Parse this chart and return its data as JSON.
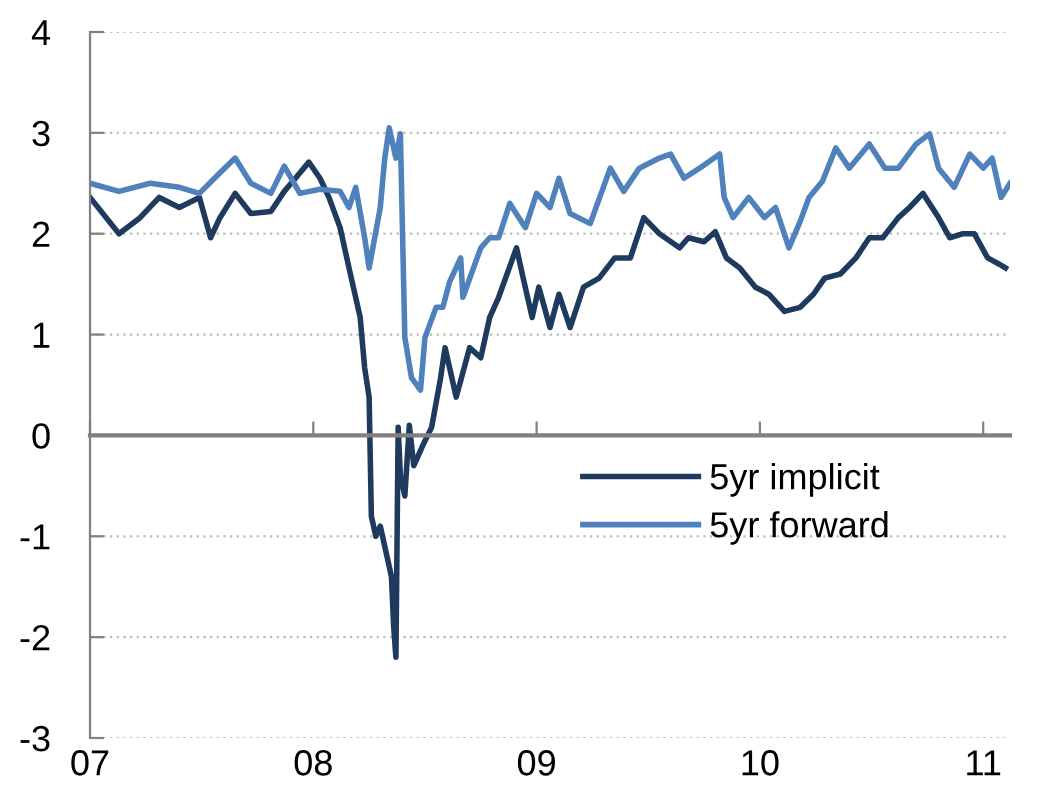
{
  "chart_data": {
    "type": "line",
    "xlim": [
      2007,
      2011.12
    ],
    "xticks": [
      {
        "value": 2007,
        "label": "07"
      },
      {
        "value": 2008,
        "label": "08"
      },
      {
        "value": 2009,
        "label": "09"
      },
      {
        "value": 2010,
        "label": "10"
      },
      {
        "value": 2011,
        "label": "11"
      }
    ],
    "ylim": [
      -3,
      4
    ],
    "yticks": [
      -3,
      -2,
      -1,
      0,
      1,
      2,
      3,
      4
    ],
    "grid": "y",
    "legend": "center right",
    "line_style": "solid",
    "marker": "none",
    "series": [
      {
        "name": "5yr implicit",
        "color": "#1f3a5f",
        "x": [
          2007.0,
          2007.13,
          2007.22,
          2007.31,
          2007.4,
          2007.49,
          2007.54,
          2007.58,
          2007.65,
          2007.72,
          2007.81,
          2007.87,
          2007.92,
          2007.98,
          2008.03,
          2008.07,
          2008.12,
          2008.16,
          2008.21,
          2008.23,
          2008.25,
          2008.26,
          2008.28,
          2008.3,
          2008.32,
          2008.35,
          2008.36,
          2008.37,
          2008.38,
          2008.39,
          2008.41,
          2008.43,
          2008.45,
          2008.49,
          2008.53,
          2008.57,
          2008.59,
          2008.64,
          2008.7,
          2008.75,
          2008.79,
          2008.83,
          2008.91,
          2008.94,
          2008.98,
          2009.01,
          2009.06,
          2009.1,
          2009.15,
          2009.21,
          2009.28,
          2009.35,
          2009.42,
          2009.48,
          2009.55,
          2009.64,
          2009.68,
          2009.75,
          2009.8,
          2009.85,
          2009.91,
          2009.98,
          2010.04,
          2010.11,
          2010.18,
          2010.24,
          2010.29,
          2010.36,
          2010.43,
          2010.49,
          2010.55,
          2010.62,
          2010.67,
          2010.73,
          2010.8,
          2010.85,
          2010.91,
          2010.96,
          2011.02,
          2011.07,
          2011.1
        ],
        "values": [
          2.36,
          2.0,
          2.15,
          2.36,
          2.26,
          2.36,
          1.96,
          2.15,
          2.4,
          2.2,
          2.22,
          2.42,
          2.55,
          2.71,
          2.55,
          2.36,
          2.06,
          1.66,
          1.17,
          0.67,
          0.38,
          -0.8,
          -1.0,
          -0.9,
          -1.1,
          -1.4,
          -1.9,
          -2.2,
          0.08,
          -0.4,
          -0.6,
          0.1,
          -0.3,
          -0.1,
          0.08,
          0.57,
          0.87,
          0.38,
          0.87,
          0.77,
          1.17,
          1.37,
          1.86,
          1.56,
          1.17,
          1.47,
          1.07,
          1.4,
          1.07,
          1.47,
          1.56,
          1.76,
          1.76,
          2.16,
          2.0,
          1.86,
          1.96,
          1.92,
          2.02,
          1.76,
          1.66,
          1.47,
          1.4,
          1.23,
          1.27,
          1.4,
          1.56,
          1.6,
          1.76,
          1.96,
          1.96,
          2.16,
          2.26,
          2.4,
          2.16,
          1.96,
          2.0,
          2.0,
          1.76,
          1.7,
          1.66
        ]
      },
      {
        "name": "5yr forward",
        "color": "#4f81bd",
        "x": [
          2007.0,
          2007.13,
          2007.27,
          2007.4,
          2007.49,
          2007.58,
          2007.65,
          2007.72,
          2007.81,
          2007.87,
          2007.94,
          2008.03,
          2008.12,
          2008.16,
          2008.19,
          2008.23,
          2008.25,
          2008.3,
          2008.32,
          2008.34,
          2008.37,
          2008.39,
          2008.4,
          2008.41,
          2008.44,
          2008.48,
          2008.5,
          2008.55,
          2008.58,
          2008.61,
          2008.66,
          2008.67,
          2008.75,
          2008.79,
          2008.83,
          2008.88,
          2008.92,
          2008.95,
          2009.0,
          2009.06,
          2009.1,
          2009.15,
          2009.24,
          2009.33,
          2009.39,
          2009.46,
          2009.55,
          2009.6,
          2009.66,
          2009.73,
          2009.82,
          2009.84,
          2009.88,
          2009.95,
          2010.02,
          2010.07,
          2010.13,
          2010.18,
          2010.22,
          2010.28,
          2010.34,
          2010.4,
          2010.49,
          2010.56,
          2010.62,
          2010.7,
          2010.76,
          2010.8,
          2010.87,
          2010.94,
          2011.0,
          2011.04,
          2011.08,
          2011.12
        ],
        "values": [
          2.5,
          2.42,
          2.5,
          2.46,
          2.4,
          2.6,
          2.75,
          2.5,
          2.4,
          2.67,
          2.4,
          2.44,
          2.42,
          2.26,
          2.46,
          1.96,
          1.66,
          2.26,
          2.75,
          3.05,
          2.75,
          2.99,
          1.96,
          0.97,
          0.57,
          0.45,
          0.97,
          1.27,
          1.27,
          1.52,
          1.76,
          1.37,
          1.86,
          1.96,
          1.96,
          2.3,
          2.16,
          2.06,
          2.4,
          2.26,
          2.55,
          2.2,
          2.1,
          2.65,
          2.42,
          2.65,
          2.75,
          2.79,
          2.55,
          2.65,
          2.79,
          2.36,
          2.16,
          2.36,
          2.16,
          2.26,
          1.86,
          2.12,
          2.36,
          2.52,
          2.85,
          2.65,
          2.89,
          2.65,
          2.65,
          2.89,
          2.99,
          2.65,
          2.46,
          2.79,
          2.65,
          2.75,
          2.36,
          2.5
        ]
      }
    ]
  }
}
